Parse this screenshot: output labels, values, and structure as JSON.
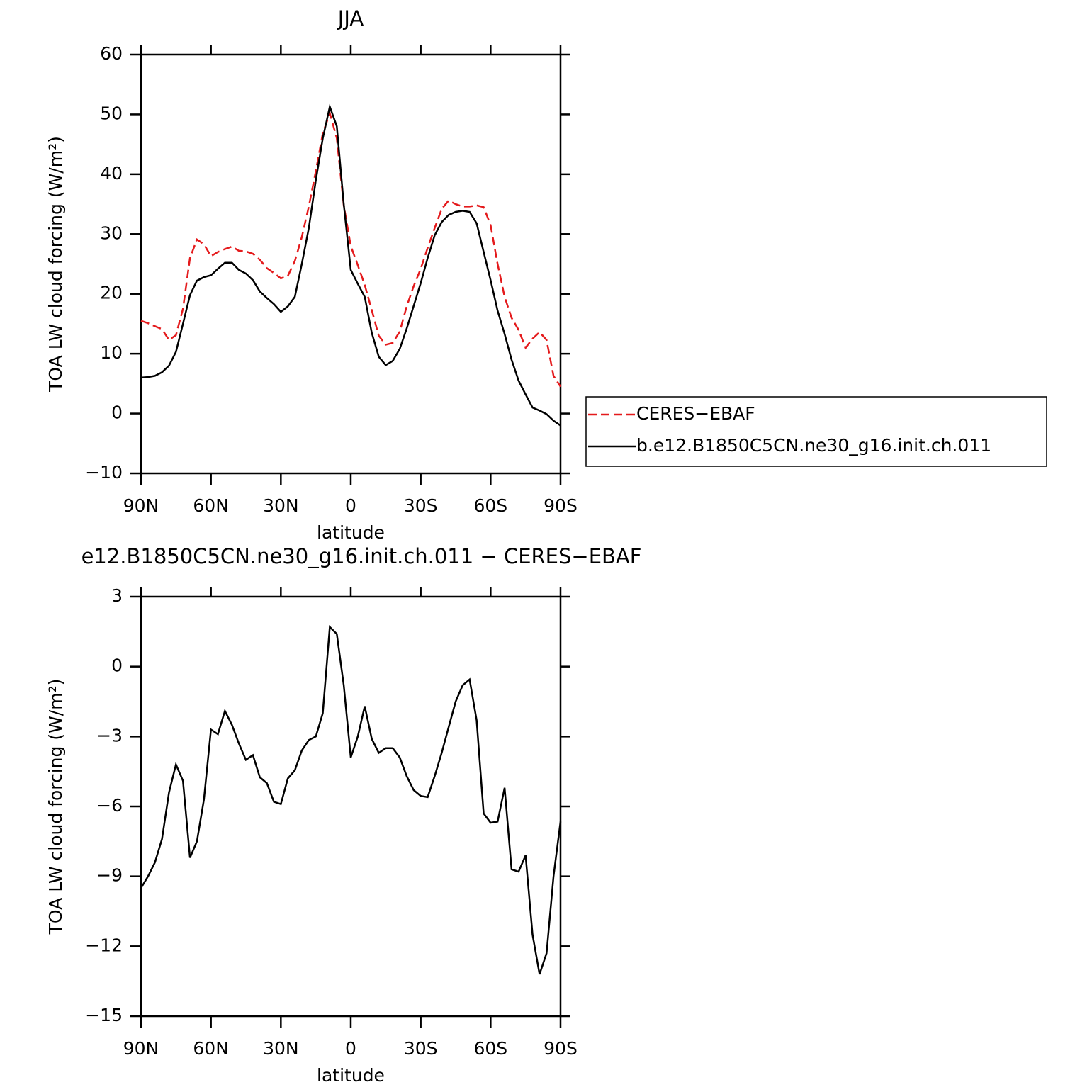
{
  "chart_data": [
    {
      "type": "line",
      "title": "JJA",
      "xlabel": "latitude",
      "ylabel": "TOA LW cloud forcing (W/m²)",
      "x": [
        90,
        87,
        84,
        81,
        78,
        75,
        72,
        69,
        66,
        63,
        60,
        57,
        54,
        51,
        48,
        45,
        42,
        39,
        36,
        33,
        30,
        27,
        24,
        21,
        18,
        15,
        12,
        9,
        6,
        3,
        0,
        -3,
        -6,
        -9,
        -12,
        -15,
        -18,
        -21,
        -24,
        -27,
        -30,
        -33,
        -36,
        -39,
        -42,
        -45,
        -48,
        -51,
        -54,
        -57,
        -60,
        -63,
        -66,
        -69,
        -72,
        -75,
        -78,
        -81,
        -84,
        -87,
        -90
      ],
      "xlim": [
        90,
        -90
      ],
      "xticks": [
        {
          "value": 90,
          "label": "90N"
        },
        {
          "value": 60,
          "label": "60N"
        },
        {
          "value": 30,
          "label": "30N"
        },
        0,
        {
          "value": -30,
          "label": "30S"
        },
        {
          "value": -60,
          "label": "60S"
        },
        {
          "value": -90,
          "label": "90S"
        }
      ],
      "ylim": [
        -10,
        60
      ],
      "yticks": [
        {
          "value": -10,
          "label": "−10"
        },
        0,
        10,
        20,
        30,
        40,
        50,
        60
      ],
      "legend": "right",
      "series": [
        {
          "name": "CERES−EBAF",
          "color": "#e41a1c",
          "dash": true,
          "values": [
            15.5,
            15.1,
            14.6,
            14.1,
            12.3,
            13.1,
            17.5,
            26,
            29.1,
            28.3,
            26.3,
            27,
            27.5,
            27.9,
            27.2,
            27.1,
            26.7,
            25.7,
            24.3,
            23.5,
            22.6,
            23,
            25.5,
            29.5,
            34.6,
            40.5,
            46.8,
            50.2,
            46,
            34.8,
            28,
            24.8,
            21.5,
            17.3,
            13,
            11.5,
            11.8,
            13.7,
            17.9,
            21.3,
            24.2,
            27.7,
            31,
            34.2,
            35.6,
            35,
            34.6,
            34.6,
            34.8,
            34.5,
            31.5,
            25,
            19.5,
            16,
            14,
            11,
            12.5,
            13.6,
            12.3,
            6.3,
            4.5
          ]
        },
        {
          "name": "b.e12.B1850C5CN.ne30_g16.init.ch.011",
          "color": "#000000",
          "dash": false,
          "values": [
            6,
            6.1,
            6.3,
            6.9,
            8,
            10.3,
            15,
            19.8,
            22.2,
            22.8,
            23.1,
            24.2,
            25.2,
            25.2,
            24,
            23.4,
            22.3,
            20.4,
            19.3,
            18.3,
            17,
            17.9,
            19.5,
            25,
            31,
            39,
            46,
            51.3,
            48,
            35,
            24,
            21.7,
            19.5,
            13.5,
            9.5,
            8.1,
            8.8,
            10.8,
            14.2,
            18,
            21.8,
            26,
            29.8,
            32,
            33.2,
            33.7,
            33.9,
            33.7,
            31.8,
            27,
            22.3,
            17.2,
            13.3,
            9,
            5.5,
            3.2,
            1,
            0.5,
            -0.1,
            -1.2,
            -2
          ]
        }
      ]
    },
    {
      "type": "line",
      "title": "e12.B1850C5CN.ne30_g16.init.ch.011 − CERES−EBAF",
      "xlabel": "latitude",
      "ylabel": "TOA LW cloud forcing (W/m²)",
      "x": [
        90,
        87,
        84,
        81,
        78,
        75,
        72,
        69,
        66,
        63,
        60,
        57,
        54,
        51,
        48,
        45,
        42,
        39,
        36,
        33,
        30,
        27,
        24,
        21,
        18,
        15,
        12,
        9,
        6,
        3,
        0,
        -3,
        -6,
        -9,
        -12,
        -15,
        -18,
        -21,
        -24,
        -27,
        -30,
        -33,
        -36,
        -39,
        -42,
        -45,
        -48,
        -51,
        -54,
        -57,
        -60,
        -63,
        -66,
        -69,
        -72,
        -75,
        -78,
        -81,
        -84,
        -87,
        -90
      ],
      "xlim": [
        90,
        -90
      ],
      "xticks": [
        {
          "value": 90,
          "label": "90N"
        },
        {
          "value": 60,
          "label": "60N"
        },
        {
          "value": 30,
          "label": "30N"
        },
        0,
        {
          "value": -30,
          "label": "30S"
        },
        {
          "value": -60,
          "label": "60S"
        },
        {
          "value": -90,
          "label": "90S"
        }
      ],
      "ylim": [
        -15,
        3
      ],
      "yticks": [
        {
          "value": -15,
          "label": "−15"
        },
        {
          "value": -12,
          "label": "−12"
        },
        {
          "value": -9,
          "label": "−9"
        },
        {
          "value": -6,
          "label": "−6"
        },
        {
          "value": -3,
          "label": "−3"
        },
        0,
        3
      ],
      "series": [
        {
          "color": "#000000",
          "dash": false,
          "values": [
            -9.5,
            -9,
            -8.4,
            -7.4,
            -5.4,
            -4.2,
            -4.9,
            -8.2,
            -7.5,
            -5.7,
            -2.7,
            -2.9,
            -1.9,
            -2.5,
            -3.3,
            -4,
            -3.8,
            -4.75,
            -5,
            -5.8,
            -5.9,
            -4.8,
            -4.45,
            -3.6,
            -3.15,
            -3,
            -2,
            1.7,
            1.4,
            -0.8,
            -3.9,
            -3,
            -1.7,
            -3.1,
            -3.7,
            -3.5,
            -3.5,
            -3.9,
            -4.7,
            -5.3,
            -5.55,
            -5.6,
            -4.7,
            -3.7,
            -2.6,
            -1.5,
            -0.8,
            -0.55,
            -2.3,
            -6.3,
            -6.7,
            -6.65,
            -5.2,
            -8.7,
            -8.8,
            -8.1,
            -11.5,
            -13.2,
            -12.3,
            -9,
            -6.65
          ]
        }
      ]
    }
  ]
}
